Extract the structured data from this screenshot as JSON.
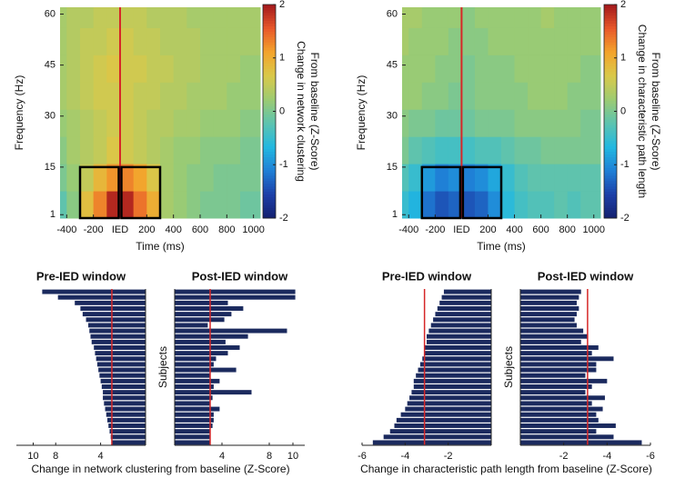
{
  "chart_data": [
    {
      "type": "heatmap",
      "x": [
        -450,
        -350,
        -250,
        -150,
        -50,
        50,
        150,
        250,
        350,
        450,
        550,
        650,
        750,
        850,
        950
      ],
      "y": [
        4,
        12,
        20,
        28,
        36,
        44,
        52,
        60
      ],
      "values": [
        [
          -0.2,
          0.1,
          0.8,
          1.3,
          1.9,
          1.9,
          1.4,
          1.0,
          0.3,
          0.2,
          0.1,
          0.0,
          0.0,
          0.0,
          -0.1
        ],
        [
          0.0,
          0.2,
          0.5,
          0.9,
          1.2,
          1.3,
          1.1,
          0.7,
          0.3,
          0.2,
          0.1,
          0.1,
          0.0,
          0.0,
          0.0
        ],
        [
          0.1,
          0.3,
          0.4,
          0.5,
          0.7,
          0.6,
          0.5,
          0.4,
          0.3,
          0.2,
          0.2,
          0.1,
          0.1,
          0.1,
          0.0
        ],
        [
          0.2,
          0.3,
          0.4,
          0.5,
          0.6,
          0.6,
          0.5,
          0.4,
          0.4,
          0.3,
          0.3,
          0.2,
          0.2,
          0.2,
          0.1
        ],
        [
          0.3,
          0.4,
          0.5,
          0.6,
          0.6,
          0.6,
          0.5,
          0.5,
          0.4,
          0.4,
          0.3,
          0.3,
          0.3,
          0.2,
          0.2
        ],
        [
          0.3,
          0.4,
          0.5,
          0.6,
          0.7,
          0.6,
          0.6,
          0.5,
          0.5,
          0.4,
          0.4,
          0.3,
          0.3,
          0.3,
          0.2
        ],
        [
          0.3,
          0.4,
          0.5,
          0.5,
          0.6,
          0.6,
          0.5,
          0.5,
          0.4,
          0.4,
          0.4,
          0.3,
          0.3,
          0.3,
          0.3
        ],
        [
          0.3,
          0.4,
          0.4,
          0.5,
          0.5,
          0.5,
          0.5,
          0.4,
          0.4,
          0.4,
          0.3,
          0.3,
          0.3,
          0.3,
          0.3
        ]
      ],
      "xlim": [
        -450,
        1050
      ],
      "ylim": [
        0,
        62
      ],
      "xticks": [
        -400,
        -200,
        {
          "value": 0,
          "label": "IED"
        },
        200,
        400,
        600,
        800,
        1000
      ],
      "yticks": [
        1,
        15,
        30,
        45,
        60
      ],
      "xlabel": "Time (ms)",
      "ylabel": "Frequency (Hz)",
      "colorbar_label": [
        "Change in network clustering",
        "From baseline (Z-Score)"
      ],
      "colorbar_lim": [
        -2,
        2
      ],
      "colorbar_ticks": [
        -2,
        -1,
        0,
        1,
        2
      ],
      "colormap": [
        "#14206e",
        "#1c3fa8",
        "#1f7fd6",
        "#22b8e0",
        "#5cc3b0",
        "#9ccb72",
        "#d9c94a",
        "#f3a42c",
        "#e8582a",
        "#a31a1c"
      ],
      "event_x": 0,
      "event_color": "#d62728",
      "windows": [
        {
          "xlim": [
            -300,
            -10
          ],
          "ylim": [
            0,
            15
          ]
        },
        {
          "xlim": [
            10,
            300
          ],
          "ylim": [
            0,
            15
          ]
        }
      ]
    },
    {
      "type": "heatmap",
      "x": [
        -450,
        -350,
        -250,
        -150,
        -50,
        50,
        150,
        250,
        350,
        450,
        550,
        650,
        750,
        850,
        950
      ],
      "y": [
        4,
        12,
        20,
        28,
        36,
        44,
        52,
        60
      ],
      "values": [
        [
          -0.5,
          -0.7,
          -1.2,
          -1.4,
          -1.3,
          -1.4,
          -1.3,
          -1.0,
          -0.6,
          -0.4,
          -0.3,
          -0.3,
          -0.2,
          -0.3,
          -0.2
        ],
        [
          -0.3,
          -0.5,
          -0.9,
          -1.1,
          -1.0,
          -1.1,
          -1.0,
          -0.8,
          -0.5,
          -0.3,
          -0.2,
          -0.2,
          -0.2,
          -0.2,
          -0.2
        ],
        [
          0.0,
          -0.2,
          -0.3,
          -0.4,
          -0.4,
          -0.4,
          -0.3,
          -0.3,
          -0.2,
          -0.1,
          -0.1,
          0.0,
          0.0,
          0.0,
          0.0
        ],
        [
          0.1,
          0.0,
          0.0,
          -0.1,
          -0.1,
          -0.1,
          0.0,
          0.0,
          0.0,
          0.1,
          0.1,
          0.1,
          0.1,
          0.1,
          0.0
        ],
        [
          0.2,
          0.2,
          0.1,
          0.1,
          0.0,
          0.0,
          0.1,
          0.1,
          0.1,
          0.1,
          0.2,
          0.2,
          0.2,
          0.1,
          0.1
        ],
        [
          0.2,
          0.2,
          0.2,
          0.1,
          0.1,
          0.0,
          0.1,
          0.1,
          0.1,
          0.2,
          0.2,
          0.2,
          0.2,
          0.2,
          0.1
        ],
        [
          0.3,
          0.2,
          0.2,
          0.2,
          0.1,
          0.1,
          0.1,
          0.2,
          0.2,
          0.2,
          0.2,
          0.2,
          0.2,
          0.2,
          0.2
        ],
        [
          0.3,
          0.3,
          0.2,
          0.2,
          0.2,
          0.1,
          0.2,
          0.2,
          0.2,
          0.2,
          0.2,
          0.3,
          0.2,
          0.2,
          0.2
        ]
      ],
      "xlim": [
        -450,
        1050
      ],
      "ylim": [
        0,
        62
      ],
      "xticks": [
        -400,
        -200,
        {
          "value": 0,
          "label": "IED"
        },
        200,
        400,
        600,
        800,
        1000
      ],
      "yticks": [
        1,
        15,
        30,
        45,
        60
      ],
      "xlabel": "Time (ms)",
      "ylabel": "Frequency (Hz)",
      "colorbar_label": [
        "Change in characteristic path length",
        "From baseline (Z-Score)"
      ],
      "colorbar_lim": [
        -2,
        2
      ],
      "colorbar_ticks": [
        -2,
        -1,
        0,
        1,
        2
      ],
      "colormap": [
        "#14206e",
        "#1c3fa8",
        "#1f7fd6",
        "#22b8e0",
        "#5cc3b0",
        "#9ccb72",
        "#d9c94a",
        "#f3a42c",
        "#e8582a",
        "#a31a1c"
      ],
      "event_x": 0,
      "event_color": "#d62728",
      "windows": [
        {
          "xlim": [
            -300,
            -10
          ],
          "ylim": [
            0,
            15
          ]
        },
        {
          "xlim": [
            10,
            300
          ],
          "ylim": [
            0,
            15
          ]
        }
      ]
    },
    {
      "type": "barh",
      "title": "Pre-IED window",
      "values": [
        9.2,
        7.8,
        6.3,
        5.8,
        5.6,
        5.3,
        5.1,
        5.0,
        4.9,
        4.8,
        4.6,
        4.5,
        4.4,
        4.3,
        4.2,
        4.1,
        4.0,
        3.9,
        3.8,
        3.8,
        3.7,
        3.6,
        3.5,
        3.4,
        3.3,
        3.2,
        3.1,
        3.0
      ],
      "color": "#1b2a5e",
      "xlim": [
        11.5,
        0
      ],
      "xticks": [
        10,
        8,
        4
      ],
      "reference": 3,
      "reference_color": "#d62728",
      "xlabel": "Change in network clustering from baseline (Z-Score)"
    },
    {
      "type": "barh",
      "title": "Post-IED window",
      "values": [
        10.2,
        10.2,
        4.5,
        5.8,
        4.8,
        4.2,
        2.8,
        9.5,
        6.2,
        4.3,
        5.5,
        4.5,
        3.5,
        3.3,
        5.2,
        3.0,
        3.8,
        3.3,
        6.5,
        3.2,
        3.0,
        3.8,
        3.3,
        3.3,
        3.2,
        3.0,
        3.0,
        3.0
      ],
      "color": "#1b2a5e",
      "xlim": [
        0,
        11
      ],
      "xticks": [
        4,
        8,
        10
      ],
      "reference": 3,
      "reference_color": "#d62728",
      "ylabel": "Subjects"
    },
    {
      "type": "barh",
      "title": "Pre-IED window",
      "values": [
        -2.2,
        -2.3,
        -2.4,
        -2.5,
        -2.6,
        -2.7,
        -2.8,
        -2.9,
        -3.0,
        -3.0,
        -3.1,
        -3.1,
        -3.2,
        -3.3,
        -3.4,
        -3.5,
        -3.6,
        -3.6,
        -3.7,
        -3.8,
        -3.9,
        -4.0,
        -4.2,
        -4.4,
        -4.5,
        -4.7,
        -5.0,
        -5.5
      ],
      "color": "#1b2a5e",
      "xlim": [
        -6,
        0
      ],
      "xticks": [
        -6,
        -4,
        -2
      ],
      "reference": -3.1,
      "reference_color": "#d62728",
      "xlabel": "Change in  characteristic path length from baseline (Z-Score)"
    },
    {
      "type": "barh",
      "title": "Post-IED window",
      "values": [
        -2.8,
        -2.7,
        -2.6,
        -2.7,
        -2.6,
        -2.5,
        -2.6,
        -2.9,
        -3.1,
        -2.8,
        -3.6,
        -3.3,
        -4.3,
        -3.5,
        -3.5,
        -3.0,
        -4.0,
        -3.3,
        -3.0,
        -3.9,
        -3.3,
        -3.8,
        -3.5,
        -3.6,
        -4.4,
        -3.5,
        -4.3,
        -5.6
      ],
      "color": "#1b2a5e",
      "xlim": [
        0,
        -6
      ],
      "xticks": [
        -2,
        -4,
        -6
      ],
      "reference": -3.1,
      "reference_color": "#d62728",
      "ylabel": "Subjects"
    }
  ]
}
